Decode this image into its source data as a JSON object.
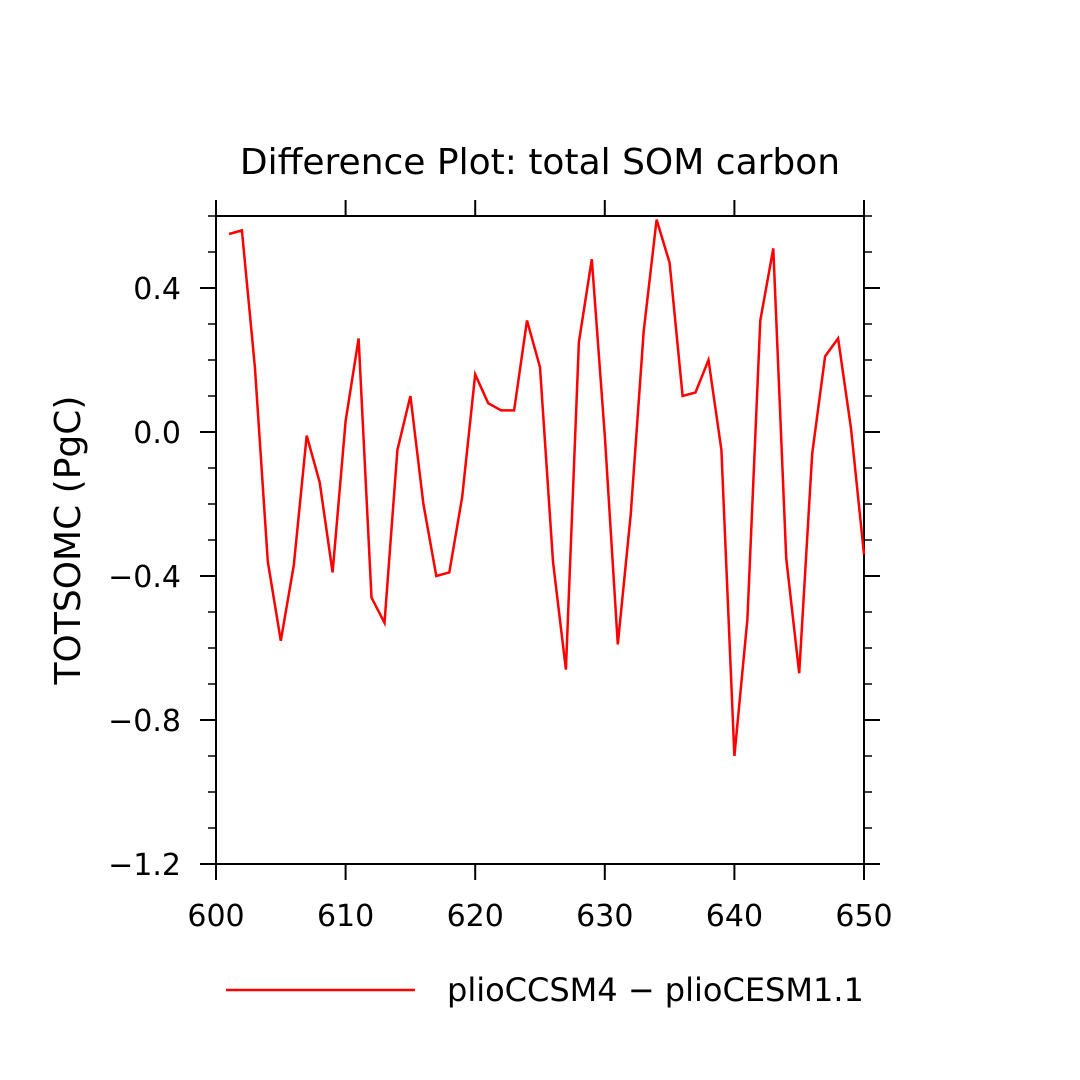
{
  "chart_data": {
    "type": "line",
    "title": "Difference Plot: total SOM carbon",
    "xlabel": "",
    "ylabel": "TOTSOMC   (PgC)",
    "xlim": [
      600,
      650
    ],
    "ylim": [
      -1.2,
      0.6
    ],
    "x_ticks": [
      600,
      610,
      620,
      630,
      640,
      650
    ],
    "x_tick_labels": [
      "600",
      "610",
      "620",
      "630",
      "640",
      "650"
    ],
    "y_ticks": [
      -1.2,
      -0.8,
      -0.4,
      0.0,
      0.4
    ],
    "y_tick_labels": [
      "−1.2",
      "−0.8",
      "−0.4",
      "0.0",
      "0.4"
    ],
    "grid": false,
    "legend_position": "bottom",
    "series": [
      {
        "name": "plioCCSM4 − plioCESM1.1",
        "color": "#ff0000",
        "x": [
          601,
          602,
          603,
          604,
          605,
          606,
          607,
          608,
          609,
          610,
          611,
          612,
          613,
          614,
          615,
          616,
          617,
          618,
          619,
          620,
          621,
          622,
          623,
          624,
          625,
          626,
          627,
          628,
          629,
          630,
          631,
          632,
          633,
          634,
          635,
          636,
          637,
          638,
          639,
          640,
          641,
          642,
          643,
          644,
          645,
          646,
          647,
          648,
          649,
          650
        ],
        "values": [
          0.55,
          0.56,
          0.18,
          -0.36,
          -0.58,
          -0.37,
          -0.01,
          -0.14,
          -0.39,
          0.03,
          0.26,
          -0.46,
          -0.53,
          -0.05,
          0.1,
          -0.2,
          -0.4,
          -0.39,
          -0.18,
          0.16,
          0.08,
          0.06,
          0.06,
          0.31,
          0.18,
          -0.36,
          -0.66,
          0.25,
          0.48,
          -0.01,
          -0.59,
          -0.23,
          0.28,
          0.59,
          0.47,
          0.1,
          0.11,
          0.2,
          -0.05,
          -0.9,
          -0.52,
          0.31,
          0.51,
          -0.35,
          -0.67,
          -0.06,
          0.21,
          0.26,
          0.01,
          -0.34
        ]
      }
    ]
  }
}
